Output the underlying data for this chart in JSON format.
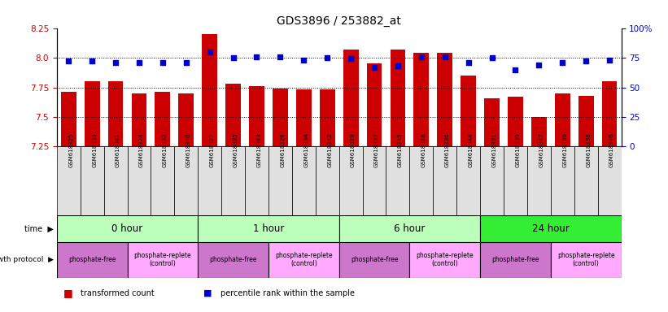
{
  "title": "GDS3896 / 253882_at",
  "samples": [
    "GSM618325",
    "GSM618333",
    "GSM618341",
    "GSM618324",
    "GSM618332",
    "GSM618340",
    "GSM618327",
    "GSM618335",
    "GSM618343",
    "GSM618326",
    "GSM618334",
    "GSM618342",
    "GSM618329",
    "GSM618337",
    "GSM618345",
    "GSM618328",
    "GSM618336",
    "GSM618344",
    "GSM618331",
    "GSM618339",
    "GSM618347",
    "GSM618330",
    "GSM618338",
    "GSM618346"
  ],
  "red_values": [
    7.71,
    7.8,
    7.8,
    7.7,
    7.71,
    7.7,
    8.2,
    7.78,
    7.76,
    7.74,
    7.73,
    7.73,
    8.07,
    7.95,
    8.07,
    8.04,
    8.04,
    7.85,
    7.66,
    7.67,
    7.5,
    7.7,
    7.68,
    7.8
  ],
  "blue_values": [
    72,
    72,
    71,
    71,
    71,
    71,
    80,
    75,
    76,
    76,
    73,
    75,
    74,
    67,
    68,
    76,
    76,
    71,
    75,
    65,
    69,
    71,
    72,
    73
  ],
  "ymin": 7.25,
  "ymax": 8.25,
  "yticks": [
    7.25,
    7.5,
    7.75,
    8.0,
    8.25
  ],
  "right_yticks": [
    0,
    25,
    50,
    75,
    100
  ],
  "bar_color": "#cc0000",
  "square_color": "#0000cc",
  "time_groups": [
    {
      "label": "0 hour",
      "start": 0,
      "end": 6,
      "color": "#bbffbb"
    },
    {
      "label": "1 hour",
      "start": 6,
      "end": 12,
      "color": "#bbffbb"
    },
    {
      "label": "6 hour",
      "start": 12,
      "end": 18,
      "color": "#bbffbb"
    },
    {
      "label": "24 hour",
      "start": 18,
      "end": 24,
      "color": "#33ee33"
    }
  ],
  "protocol_groups": [
    {
      "label": "phosphate-free",
      "start": 0,
      "end": 3,
      "color": "#cc77cc"
    },
    {
      "label": "phosphate-replete\n(control)",
      "start": 3,
      "end": 6,
      "color": "#ffaaff"
    },
    {
      "label": "phosphate-free",
      "start": 6,
      "end": 9,
      "color": "#cc77cc"
    },
    {
      "label": "phosphate-replete\n(control)",
      "start": 9,
      "end": 12,
      "color": "#ffaaff"
    },
    {
      "label": "phosphate-free",
      "start": 12,
      "end": 15,
      "color": "#cc77cc"
    },
    {
      "label": "phosphate-replete\n(control)",
      "start": 15,
      "end": 18,
      "color": "#ffaaff"
    },
    {
      "label": "phosphate-free",
      "start": 18,
      "end": 21,
      "color": "#cc77cc"
    },
    {
      "label": "phosphate-replete\n(control)",
      "start": 21,
      "end": 24,
      "color": "#ffaaff"
    }
  ]
}
